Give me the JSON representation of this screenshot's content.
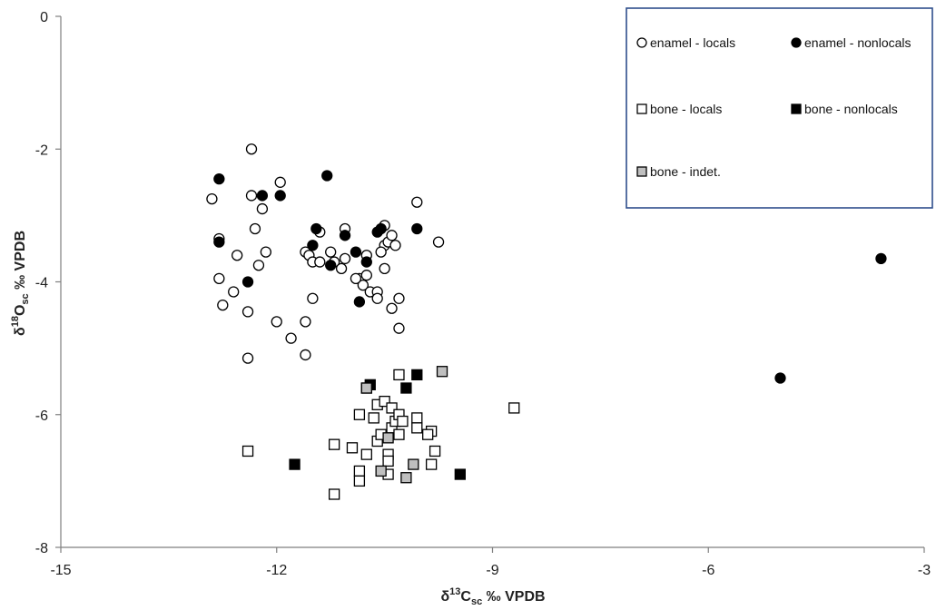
{
  "chart_data": {
    "type": "scatter",
    "title": "",
    "xlabel_main": "δ",
    "xlabel_sup": "13",
    "xlabel_c": "C",
    "xlabel_sub": "sc",
    "xlabel_rest": " ‰ VPDB",
    "ylabel_main": "δ",
    "ylabel_sup": "18",
    "ylabel_o": "O",
    "ylabel_sub": "sc",
    "ylabel_rest": " ‰ VPDB",
    "xlim": [
      -15,
      -3
    ],
    "ylim": [
      -8,
      0
    ],
    "x_ticks": [
      -15,
      -12,
      -9,
      -6,
      -3
    ],
    "y_ticks": [
      0,
      -2,
      -4,
      -6,
      -8
    ],
    "x_tick_labels": [
      "-15",
      "-12",
      "-9",
      "-6",
      "-3"
    ],
    "y_tick_labels": [
      "0",
      "-2",
      "-4",
      "-6",
      "-8"
    ],
    "grid": false,
    "legend_position": "top-right",
    "legend": [
      {
        "label": "enamel - locals",
        "marker": "circle",
        "fill": "#ffffff",
        "stroke": "#000000"
      },
      {
        "label": "enamel - nonlocals",
        "marker": "circle",
        "fill": "#000000",
        "stroke": "#000000"
      },
      {
        "label": "bone - locals",
        "marker": "square",
        "fill": "#ffffff",
        "stroke": "#000000"
      },
      {
        "label": "bone - nonlocals",
        "marker": "square",
        "fill": "#000000",
        "stroke": "#000000"
      },
      {
        "label": "bone - indet.",
        "marker": "square",
        "fill": "#bfbfbf",
        "stroke": "#000000"
      }
    ],
    "series": [
      {
        "name": "enamel - locals",
        "marker": "circle",
        "fill": "#ffffff",
        "stroke": "#000000",
        "points": [
          [
            -12.35,
            -2.0
          ],
          [
            -12.9,
            -2.75
          ],
          [
            -12.35,
            -2.7
          ],
          [
            -12.2,
            -2.9
          ],
          [
            -11.95,
            -2.5
          ],
          [
            -12.8,
            -3.35
          ],
          [
            -12.3,
            -3.2
          ],
          [
            -12.15,
            -3.55
          ],
          [
            -12.55,
            -3.6
          ],
          [
            -12.25,
            -3.75
          ],
          [
            -12.8,
            -3.95
          ],
          [
            -12.6,
            -4.15
          ],
          [
            -12.75,
            -4.35
          ],
          [
            -12.4,
            -4.45
          ],
          [
            -12.4,
            -5.15
          ],
          [
            -12.0,
            -4.6
          ],
          [
            -11.8,
            -4.85
          ],
          [
            -11.6,
            -4.6
          ],
          [
            -11.6,
            -5.1
          ],
          [
            -11.5,
            -4.25
          ],
          [
            -11.6,
            -3.55
          ],
          [
            -11.55,
            -3.6
          ],
          [
            -11.4,
            -3.25
          ],
          [
            -11.5,
            -3.7
          ],
          [
            -11.4,
            -3.7
          ],
          [
            -11.25,
            -3.55
          ],
          [
            -11.2,
            -3.7
          ],
          [
            -11.05,
            -3.2
          ],
          [
            -11.1,
            -3.8
          ],
          [
            -11.05,
            -3.65
          ],
          [
            -10.85,
            -3.95
          ],
          [
            -10.8,
            -4.05
          ],
          [
            -10.75,
            -3.9
          ],
          [
            -10.75,
            -3.6
          ],
          [
            -10.7,
            -4.15
          ],
          [
            -10.6,
            -4.15
          ],
          [
            -10.6,
            -4.25
          ],
          [
            -10.5,
            -3.45
          ],
          [
            -10.5,
            -3.8
          ],
          [
            -10.5,
            -3.15
          ],
          [
            -10.45,
            -3.4
          ],
          [
            -10.4,
            -3.3
          ],
          [
            -10.35,
            -3.45
          ],
          [
            -10.3,
            -4.25
          ],
          [
            -10.3,
            -4.7
          ],
          [
            -10.4,
            -4.4
          ],
          [
            -10.05,
            -2.8
          ],
          [
            -9.75,
            -3.4
          ],
          [
            -10.55,
            -3.55
          ],
          [
            -10.9,
            -3.95
          ]
        ]
      },
      {
        "name": "enamel - nonlocals",
        "marker": "circle",
        "fill": "#000000",
        "stroke": "#000000",
        "points": [
          [
            -12.8,
            -2.45
          ],
          [
            -12.2,
            -2.7
          ],
          [
            -11.95,
            -2.7
          ],
          [
            -11.3,
            -2.4
          ],
          [
            -12.8,
            -3.4
          ],
          [
            -12.4,
            -4.0
          ],
          [
            -11.45,
            -3.2
          ],
          [
            -11.5,
            -3.45
          ],
          [
            -11.25,
            -3.75
          ],
          [
            -10.9,
            -3.55
          ],
          [
            -11.05,
            -3.3
          ],
          [
            -10.85,
            -4.3
          ],
          [
            -10.75,
            -3.7
          ],
          [
            -10.6,
            -3.25
          ],
          [
            -10.55,
            -3.2
          ],
          [
            -10.05,
            -3.2
          ],
          [
            -5.0,
            -5.45
          ],
          [
            -3.6,
            -3.65
          ]
        ]
      },
      {
        "name": "bone - locals",
        "marker": "square",
        "fill": "#ffffff",
        "stroke": "#000000",
        "points": [
          [
            -12.4,
            -6.55
          ],
          [
            -11.2,
            -7.2
          ],
          [
            -11.2,
            -6.45
          ],
          [
            -10.95,
            -6.5
          ],
          [
            -10.85,
            -6.85
          ],
          [
            -10.85,
            -7.0
          ],
          [
            -10.85,
            -6.0
          ],
          [
            -10.75,
            -6.6
          ],
          [
            -10.75,
            -5.6
          ],
          [
            -10.65,
            -6.05
          ],
          [
            -10.6,
            -5.85
          ],
          [
            -10.6,
            -6.4
          ],
          [
            -10.55,
            -6.3
          ],
          [
            -10.5,
            -5.8
          ],
          [
            -10.45,
            -6.6
          ],
          [
            -10.45,
            -6.9
          ],
          [
            -10.45,
            -6.7
          ],
          [
            -10.4,
            -6.2
          ],
          [
            -10.4,
            -5.9
          ],
          [
            -10.35,
            -6.1
          ],
          [
            -10.3,
            -5.4
          ],
          [
            -10.3,
            -6.0
          ],
          [
            -10.25,
            -6.1
          ],
          [
            -10.3,
            -6.3
          ],
          [
            -10.05,
            -6.05
          ],
          [
            -10.05,
            -6.2
          ],
          [
            -9.85,
            -6.25
          ],
          [
            -9.9,
            -6.3
          ],
          [
            -9.8,
            -6.55
          ],
          [
            -9.85,
            -6.75
          ],
          [
            -8.7,
            -5.9
          ]
        ]
      },
      {
        "name": "bone - nonlocals",
        "marker": "square",
        "fill": "#000000",
        "stroke": "#000000",
        "points": [
          [
            -11.75,
            -6.75
          ],
          [
            -10.7,
            -5.55
          ],
          [
            -10.2,
            -5.6
          ],
          [
            -10.05,
            -5.4
          ],
          [
            -9.45,
            -6.9
          ]
        ]
      },
      {
        "name": "bone - indet.",
        "marker": "square",
        "fill": "#bfbfbf",
        "stroke": "#000000",
        "points": [
          [
            -9.7,
            -5.35
          ],
          [
            -10.75,
            -5.6
          ],
          [
            -10.45,
            -6.35
          ],
          [
            -10.55,
            -6.85
          ],
          [
            -10.1,
            -6.75
          ],
          [
            -10.2,
            -6.95
          ]
        ]
      }
    ]
  }
}
